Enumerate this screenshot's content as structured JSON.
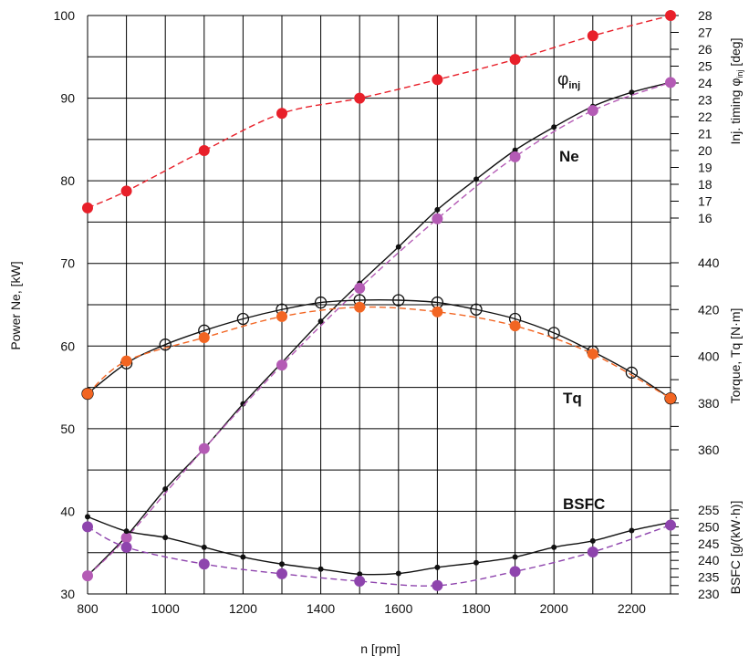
{
  "chart_data": {
    "type": "line",
    "x_axis": {
      "label": "n [rpm]",
      "range": [
        800,
        2300
      ],
      "ticks": [
        "800",
        "1000",
        "1200",
        "1400",
        "1600",
        "1800",
        "2000",
        "2200"
      ]
    },
    "left_axis": {
      "label": "Power Ne, [kW]",
      "range": [
        30,
        100
      ],
      "ticks": [
        "30",
        "40",
        "50",
        "60",
        "70",
        "80",
        "90",
        "100"
      ]
    },
    "right_axes": [
      {
        "id": "injection",
        "label": "Inj. timing φ",
        "label_sub": "inj",
        "label_unit": " [deg]",
        "range": [
          16,
          28
        ],
        "ticks": [
          "16",
          "17",
          "18",
          "19",
          "20",
          "21",
          "22",
          "23",
          "24",
          "25",
          "26",
          "27",
          "28"
        ]
      },
      {
        "id": "torque",
        "label": "Torque,  Tq  [N·m]",
        "range": [
          360,
          440
        ],
        "ticks": [
          "360",
          "380",
          "400",
          "420",
          "440"
        ]
      },
      {
        "id": "bsfc",
        "label": "BSFC [g/(kW·h)]",
        "range": [
          230,
          255
        ],
        "ticks": [
          "230",
          "235",
          "240",
          "245",
          "250",
          "255"
        ]
      }
    ],
    "annotations": [
      {
        "text": "φ",
        "sub": "inj"
      },
      {
        "text": "Ne"
      },
      {
        "text": "Tq"
      },
      {
        "text": "BSFC"
      }
    ],
    "grid": true,
    "series": [
      {
        "axis": "injection",
        "color": "#e8202a",
        "marker": "filled",
        "line": "dashed",
        "x": [
          800,
          900,
          1100,
          1300,
          1500,
          1700,
          1900,
          2100,
          2300
        ],
        "y": [
          16.6,
          17.6,
          20.0,
          22.2,
          23.1,
          24.2,
          25.4,
          26.8,
          28.0
        ]
      },
      {
        "axis": "left",
        "color": "#111111",
        "marker": "small",
        "line": "solid",
        "x": [
          800,
          900,
          1000,
          1100,
          1200,
          1300,
          1400,
          1500,
          1600,
          1700,
          1800,
          1900,
          2000,
          2100,
          2200,
          2300
        ],
        "y": [
          32.2,
          37.0,
          42.7,
          47.6,
          53.0,
          58.0,
          63.0,
          67.6,
          72.0,
          76.5,
          80.2,
          83.7,
          86.5,
          89.0,
          90.7,
          91.9
        ]
      },
      {
        "axis": "left",
        "color": "#b45bb5",
        "marker": "filled",
        "line": "dashed",
        "x": [
          800,
          900,
          1100,
          1300,
          1500,
          1700,
          1900,
          2100,
          2300
        ],
        "y": [
          32.2,
          36.8,
          47.6,
          57.7,
          67.0,
          75.4,
          82.9,
          88.5,
          91.9
        ]
      },
      {
        "axis": "torque",
        "color": "#111111",
        "marker": "open",
        "line": "solid",
        "x": [
          800,
          900,
          1000,
          1100,
          1200,
          1300,
          1400,
          1500,
          1600,
          1700,
          1800,
          1900,
          2000,
          2100,
          2200,
          2300
        ],
        "y": [
          384,
          397,
          405,
          411,
          416,
          420,
          423,
          424,
          424,
          423,
          420,
          416,
          410,
          402,
          393,
          382
        ]
      },
      {
        "axis": "torque",
        "color": "#f26522",
        "marker": "filled",
        "line": "dashed",
        "x": [
          800,
          900,
          1100,
          1300,
          1500,
          1700,
          1900,
          2100,
          2300
        ],
        "y": [
          384,
          398,
          408,
          417,
          421,
          419,
          413,
          401,
          382
        ]
      },
      {
        "axis": "bsfc",
        "color": "#111111",
        "marker": "small",
        "line": "solid",
        "x": [
          800,
          900,
          1000,
          1100,
          1200,
          1300,
          1400,
          1500,
          1600,
          1700,
          1800,
          1900,
          2000,
          2100,
          2200,
          2300
        ],
        "y": [
          253.0,
          248.7,
          246.8,
          243.9,
          241.0,
          238.9,
          237.4,
          235.9,
          236.1,
          237.9,
          239.3,
          241.0,
          243.9,
          245.8,
          248.9,
          251.3
        ]
      },
      {
        "axis": "bsfc",
        "color": "#8e44ad",
        "marker": "filled",
        "line": "dashed",
        "x": [
          800,
          900,
          1100,
          1300,
          1500,
          1700,
          1900,
          2100,
          2300
        ],
        "y": [
          250.0,
          243.9,
          238.9,
          236.0,
          233.8,
          232.5,
          236.7,
          242.5,
          250.5
        ]
      }
    ]
  }
}
